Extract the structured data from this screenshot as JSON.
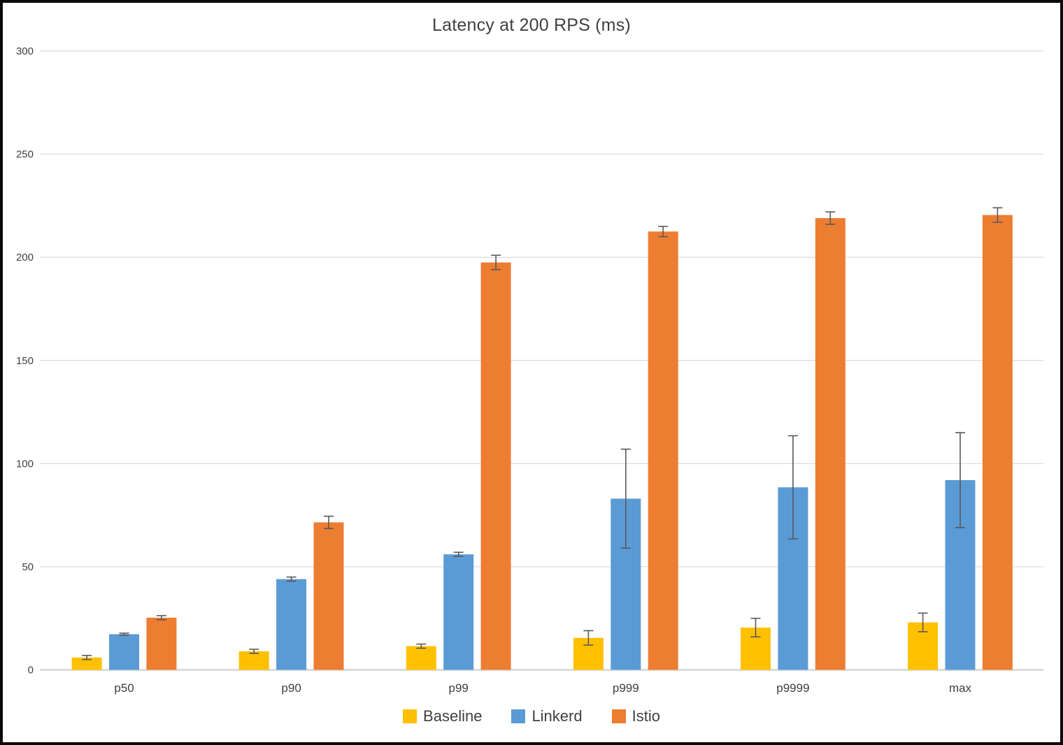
{
  "chart_data": {
    "type": "bar",
    "title": "Latency at 200 RPS (ms)",
    "xlabel": "",
    "ylabel": "",
    "categories": [
      "p50",
      "p90",
      "p99",
      "p999",
      "p9999",
      "max"
    ],
    "series": [
      {
        "name": "Baseline",
        "color": "#FFC000",
        "values": [
          6,
          9,
          11.5,
          15.5,
          20.5,
          23
        ],
        "errors": [
          1,
          1,
          1,
          3.5,
          4.5,
          4.5
        ]
      },
      {
        "name": "Linkerd",
        "color": "#5B9BD5",
        "values": [
          17.3,
          44,
          56,
          83,
          88.5,
          92
        ],
        "errors": [
          0.5,
          1,
          1,
          24,
          25,
          23
        ]
      },
      {
        "name": "Istio",
        "color": "#ED7D31",
        "values": [
          25.3,
          71.5,
          197.5,
          212.5,
          219,
          220.5
        ],
        "errors": [
          1,
          3,
          3.5,
          2.5,
          3,
          3.5
        ]
      }
    ],
    "ylim": [
      0,
      300
    ],
    "yticks": [
      0,
      50,
      100,
      150,
      200,
      250,
      300
    ],
    "grid": true,
    "legend_position": "bottom",
    "colors": {
      "text": "#404040",
      "gridline": "#D9D9D9",
      "axis_line": "#D6D6D6",
      "error_bar": "#595959"
    }
  }
}
